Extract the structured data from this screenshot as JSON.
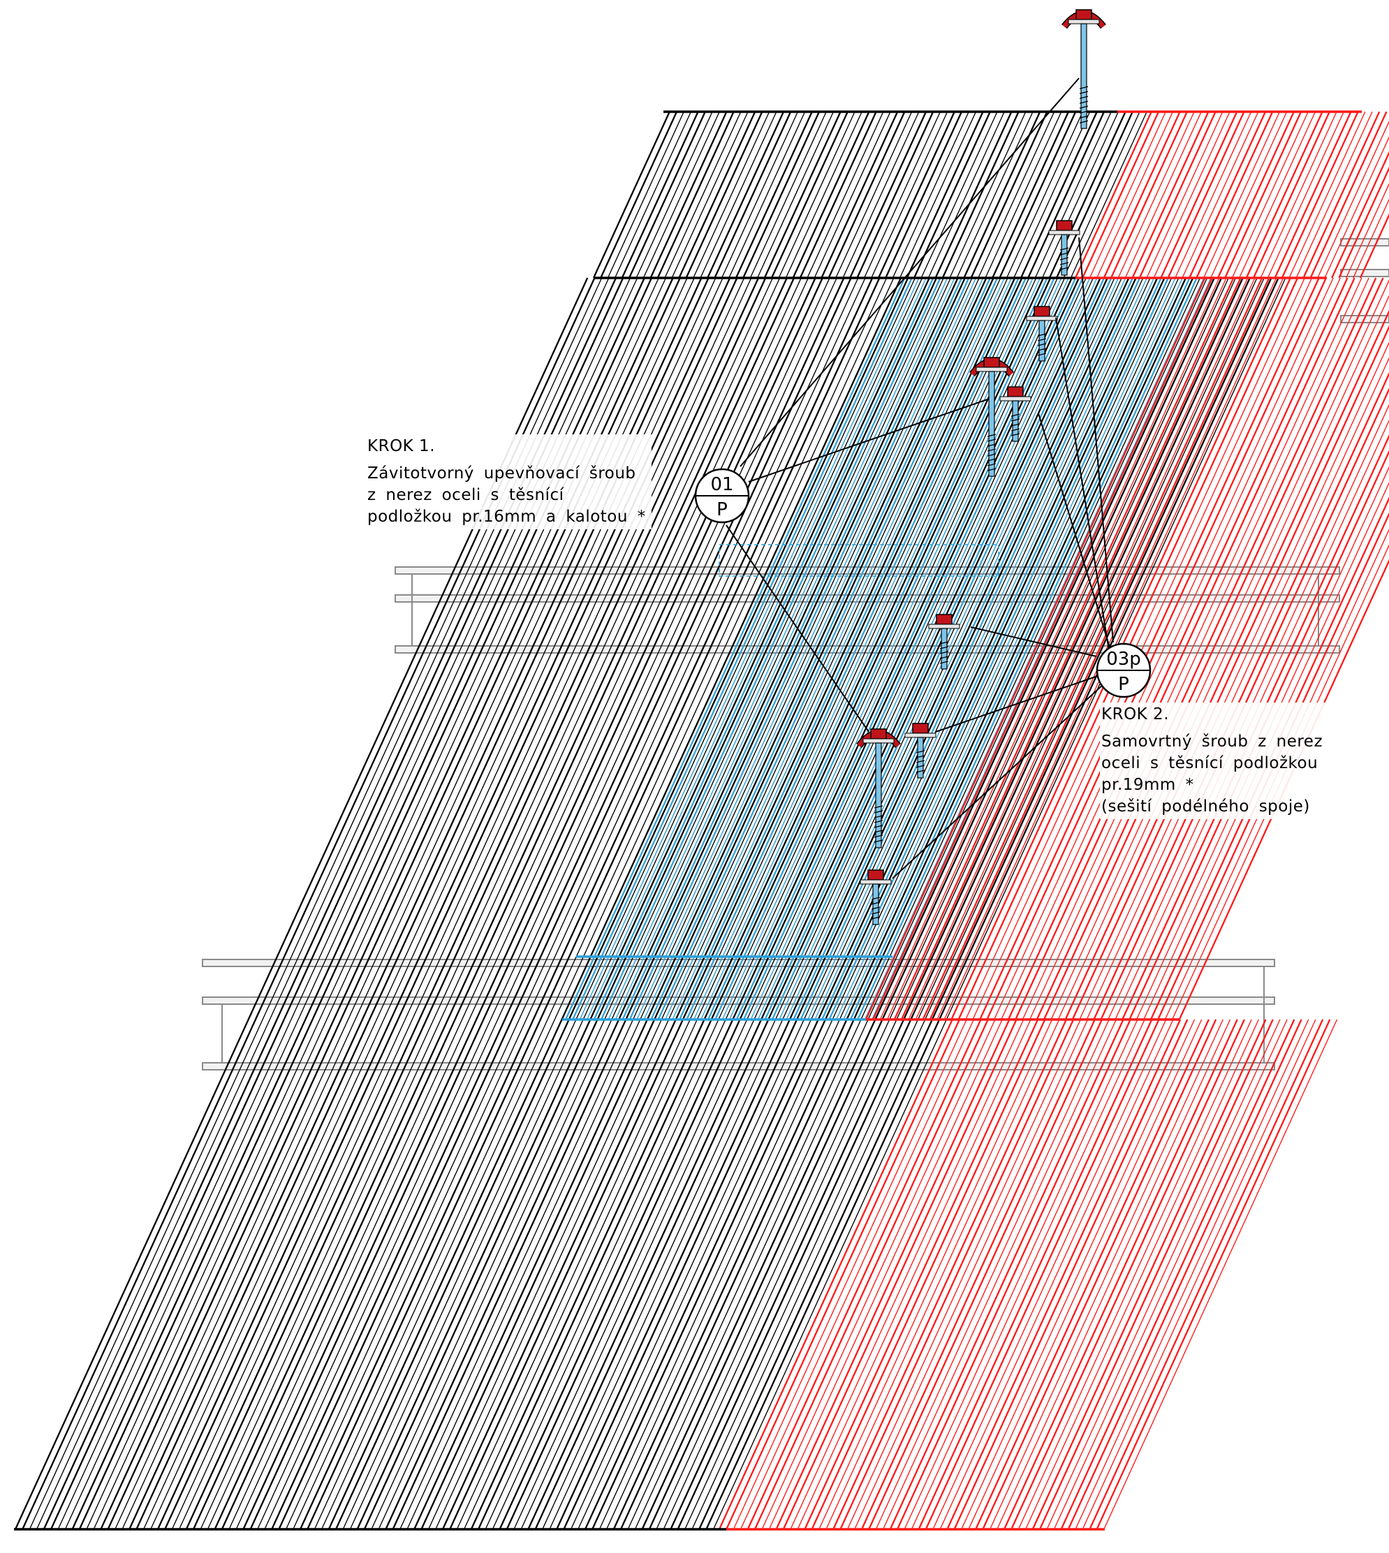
{
  "step1": {
    "title": "KROK 1.",
    "lines": [
      "Závitotvorný upevňovací šroub",
      "z nerez oceli s těsnící",
      "podložkou pr.16mm a kalotou *"
    ]
  },
  "step2": {
    "title": "KROK 2.",
    "lines": [
      "Samovrtný šroub z nerez",
      "oceli s těsnící podložkou",
      "pr.19mm *",
      "(sešití podélného spoje)"
    ]
  },
  "callout1": {
    "top": "01",
    "bottom": "P"
  },
  "callout2": {
    "top": "03p",
    "bottom": "P"
  },
  "colors": {
    "sheet_steel": "#000000",
    "sheet_translucent": "#2a9fd8",
    "sheet_red": "#ff1a1a",
    "screw_head": "#c0141a",
    "screw_shank": "#7fc4e8",
    "purlin": "#9a9a9a"
  }
}
